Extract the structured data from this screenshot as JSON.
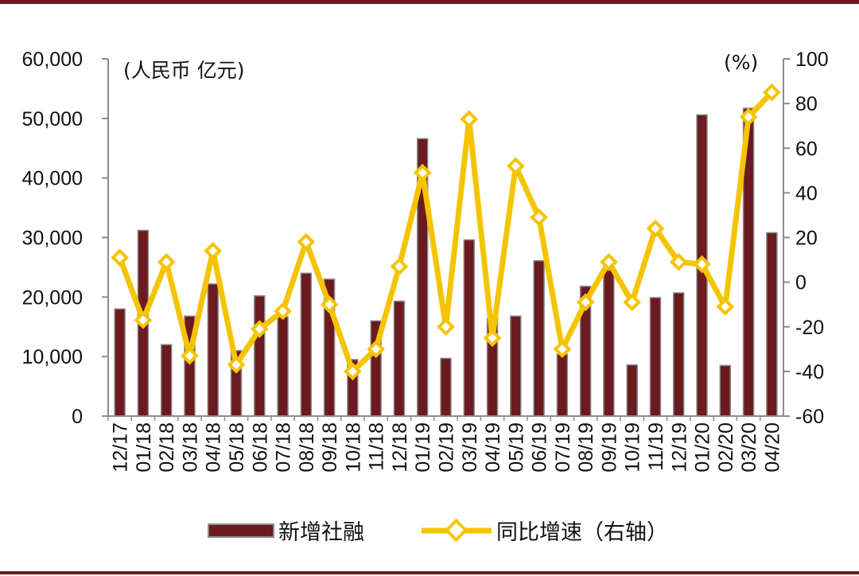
{
  "chart_data": {
    "type": "bar+line",
    "categories": [
      "12/17",
      "01/18",
      "02/18",
      "03/18",
      "04/18",
      "05/18",
      "06/18",
      "07/18",
      "08/18",
      "09/18",
      "10/18",
      "11/18",
      "12/18",
      "01/19",
      "02/19",
      "03/19",
      "04/19",
      "05/19",
      "06/19",
      "07/19",
      "08/19",
      "09/19",
      "10/19",
      "11/19",
      "12/19",
      "01/20",
      "02/20",
      "03/20",
      "04/20"
    ],
    "series": [
      {
        "name": "新增社融",
        "type": "bar",
        "axis": "left",
        "color": "#6b1a1f",
        "values": [
          18000,
          31200,
          12000,
          16800,
          22200,
          11000,
          20200,
          16700,
          24000,
          23000,
          9500,
          16000,
          19300,
          46600,
          9700,
          29600,
          16400,
          16800,
          26100,
          10400,
          21800,
          24500,
          8600,
          19900,
          20700,
          50600,
          8500,
          51700,
          30800
        ]
      },
      {
        "name": "同比增速（右轴）",
        "type": "line",
        "axis": "right",
        "color": "#f5c400",
        "values": [
          11,
          -17,
          9,
          -33,
          14,
          -37,
          -21,
          -13,
          18,
          -10,
          -40,
          -30,
          7,
          49,
          -20,
          73,
          -25,
          52,
          29,
          -30,
          -9,
          9,
          -9,
          24,
          9,
          8,
          -11,
          74,
          85
        ]
      }
    ],
    "y_left": {
      "min": 0,
      "max": 60000,
      "ticks": [
        "0",
        "10,000",
        "20,000",
        "30,000",
        "40,000",
        "50,000",
        "60,000"
      ],
      "unit_label": "(人民币  亿元)"
    },
    "y_right": {
      "min": -60,
      "max": 100,
      "ticks": [
        "-60",
        "-40",
        "-20",
        "0",
        "20",
        "40",
        "60",
        "80",
        "100"
      ],
      "unit_label": "(%)"
    },
    "legend_position": "bottom",
    "grid": false
  }
}
